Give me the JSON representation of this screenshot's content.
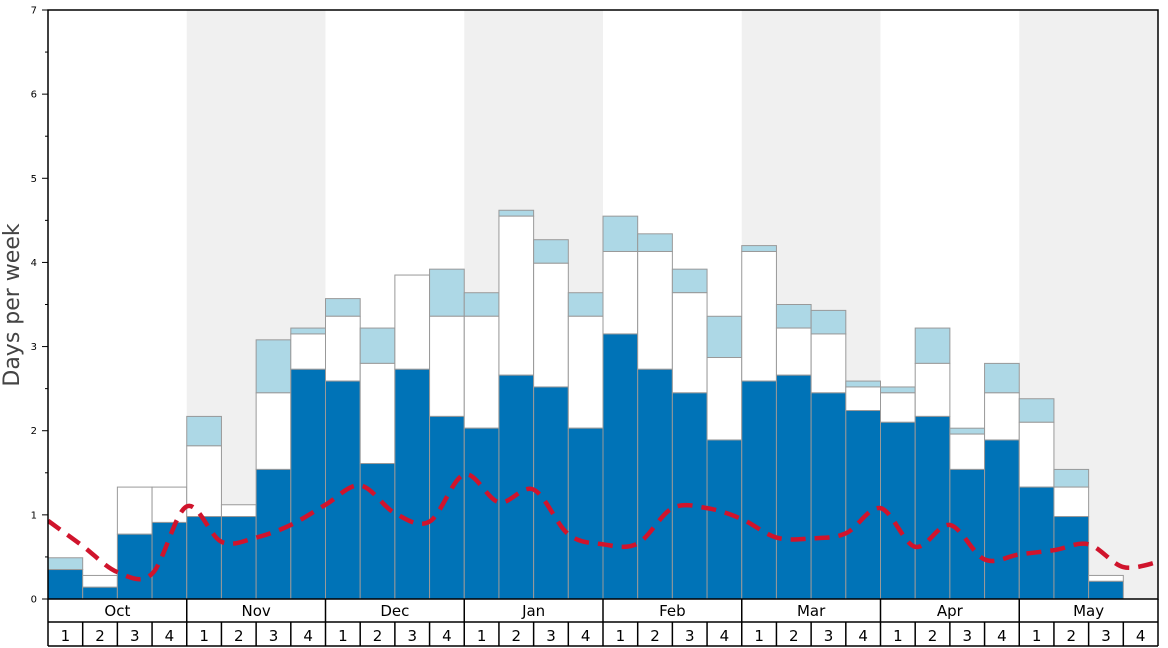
{
  "chart_data": {
    "type": "bar",
    "ylabel": "Days per week",
    "ylim": [
      0,
      7
    ],
    "y_ticks": [
      "0",
      "1",
      "2",
      "3",
      "4",
      "5",
      "6",
      "7"
    ],
    "months": [
      "Oct",
      "Nov",
      "Dec",
      "Jan",
      "Feb",
      "Mar",
      "Apr",
      "May"
    ],
    "week_labels": [
      "1",
      "2",
      "3",
      "4"
    ],
    "colors": {
      "bottom": "#0073b7",
      "middle": "#ffffff",
      "top": "#add8e6",
      "line": "#d0142c",
      "band": "#f0f0f0",
      "bar_stroke": "#999999"
    },
    "stacked": {
      "bottom": [
        0.35,
        0.14,
        0.77,
        0.91,
        0.98,
        0.98,
        1.54,
        2.73,
        2.59,
        1.61,
        2.73,
        2.17,
        2.03,
        2.66,
        2.52,
        2.03,
        3.15,
        2.73,
        2.45,
        1.89,
        2.59,
        2.66,
        2.45,
        2.24,
        2.1,
        2.17,
        1.54,
        1.89,
        1.33,
        0.98,
        0.21,
        0
      ],
      "middle_cumulative": [
        0.35,
        0.28,
        1.33,
        1.33,
        1.82,
        1.12,
        2.45,
        3.15,
        3.36,
        2.8,
        3.85,
        3.36,
        3.36,
        4.55,
        3.99,
        3.36,
        4.13,
        4.13,
        3.64,
        2.87,
        4.13,
        3.22,
        3.15,
        2.52,
        2.45,
        2.8,
        1.96,
        2.45,
        2.1,
        1.33,
        0.28,
        0
      ],
      "top_cumulative": [
        0.49,
        0.28,
        1.33,
        1.33,
        2.17,
        1.12,
        3.08,
        3.22,
        3.57,
        3.22,
        3.85,
        3.92,
        3.64,
        4.62,
        4.27,
        3.64,
        4.55,
        4.34,
        3.92,
        3.36,
        4.2,
        3.5,
        3.43,
        2.59,
        2.52,
        3.22,
        2.03,
        2.8,
        2.38,
        1.54,
        0.28,
        0
      ]
    },
    "average_line": [
      0.93,
      0.63,
      0.32,
      0.3,
      1.1,
      0.68,
      0.73,
      0.88,
      1.12,
      1.35,
      1.02,
      0.92,
      1.48,
      1.15,
      1.3,
      0.77,
      0.65,
      0.66,
      1.08,
      1.08,
      0.95,
      0.73,
      0.72,
      0.78,
      1.08,
      0.62,
      0.88,
      0.47,
      0.53,
      0.58,
      0.65,
      0.38,
      0.44
    ]
  }
}
